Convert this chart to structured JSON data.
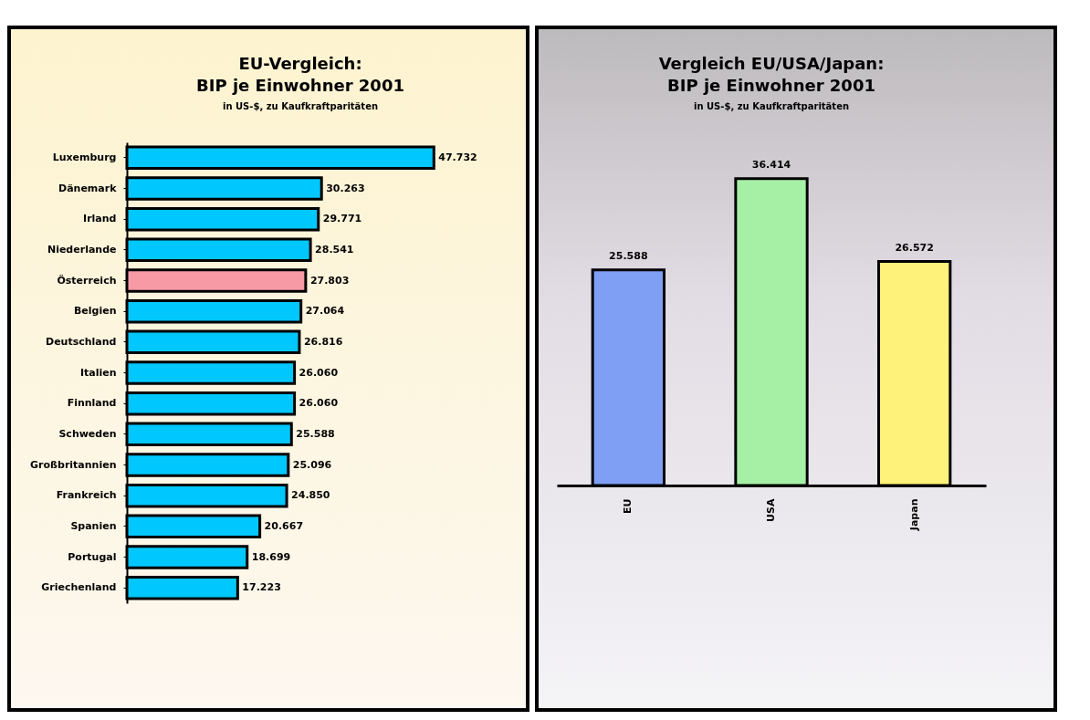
{
  "chart_data": [
    {
      "type": "bar",
      "orientation": "horizontal",
      "title": "EU-Vergleich:\nBIP je Einwohner 2001",
      "subtitle": "in US-$, zu Kaufkraftparitäten",
      "categories": [
        "Luxemburg",
        "Dänemark",
        "Irland",
        "Niederlande",
        "Österreich",
        "Belgien",
        "Deutschland",
        "Italien",
        "Finnland",
        "Schweden",
        "Großbritannien",
        "Frankreich",
        "Spanien",
        "Portugal",
        "Griechenland"
      ],
      "values": [
        47732,
        30263,
        29771,
        28541,
        27803,
        27064,
        26816,
        26060,
        26060,
        25588,
        25096,
        24850,
        20667,
        18699,
        17223
      ],
      "value_labels": [
        "47.732",
        "30.263",
        "29.771",
        "28.541",
        "27.803",
        "27.064",
        "26.816",
        "26.060",
        "26.060",
        "25.588",
        "25.096",
        "24.850",
        "20.667",
        "18.699",
        "17.223"
      ],
      "colors": [
        "#00c8ff",
        "#00c8ff",
        "#00c8ff",
        "#00c8ff",
        "#f79aa6",
        "#00c8ff",
        "#00c8ff",
        "#00c8ff",
        "#00c8ff",
        "#00c8ff",
        "#00c8ff",
        "#00c8ff",
        "#00c8ff",
        "#00c8ff",
        "#00c8ff"
      ],
      "tick_labels": "y"
    },
    {
      "type": "bar",
      "title": "Vergleich  EU/USA/Japan:\nBIP je Einwohner 2001",
      "subtitle": "in US-$, zu Kaufkraftparitäten",
      "categories": [
        "EU",
        "USA",
        "Japan"
      ],
      "values": [
        25588,
        36414,
        26572
      ],
      "value_labels": [
        "25.588",
        "36.414",
        "26.572"
      ],
      "colors": [
        "#7f9ff5",
        "#a6f0a6",
        "#fff27a"
      ],
      "tick_labels": "x"
    }
  ]
}
